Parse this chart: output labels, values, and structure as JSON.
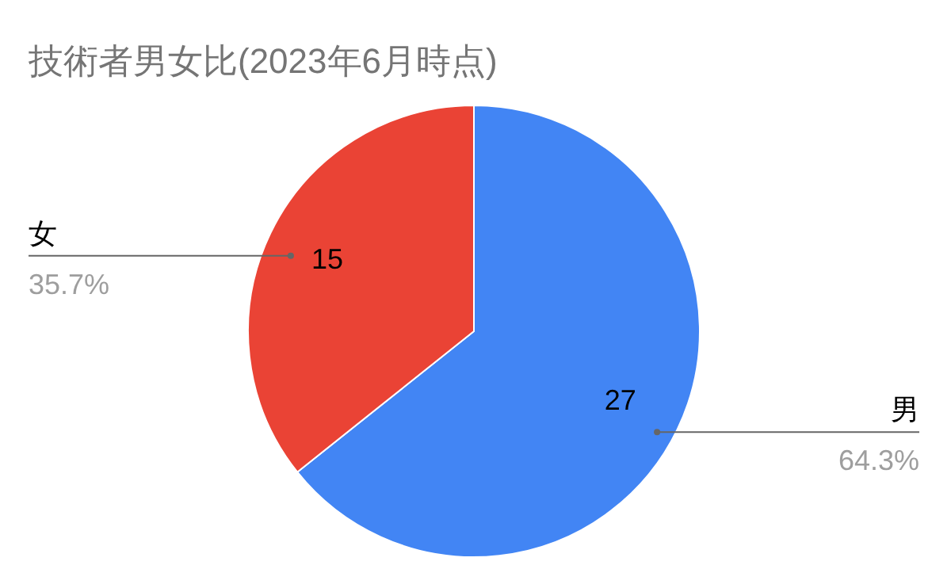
{
  "chart_data": {
    "type": "pie",
    "title": "技術者男女比(2023年6月時点)",
    "categories": [
      "男",
      "女"
    ],
    "values": [
      27,
      15
    ],
    "colors": [
      "#4285f4",
      "#ea4335"
    ],
    "data_labels": true,
    "legend": false,
    "annotations": [
      {
        "text": "64.3%",
        "x": "男"
      },
      {
        "text": "35.7%",
        "x": "女"
      }
    ]
  }
}
